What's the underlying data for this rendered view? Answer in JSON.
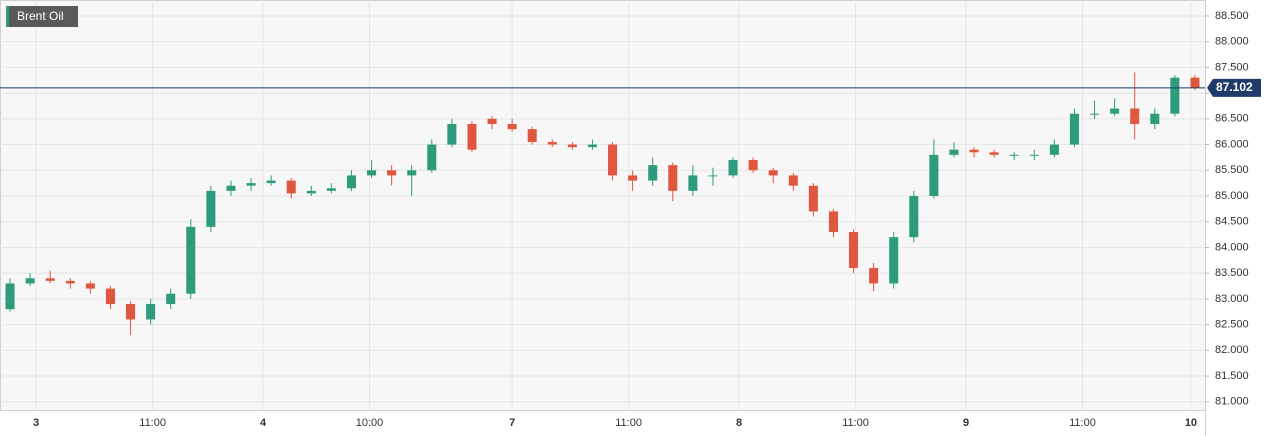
{
  "chart_data": {
    "type": "candlestick",
    "title": "Brent Oil",
    "open": [
      82.8,
      83.3,
      83.4,
      83.35,
      83.3,
      83.2,
      82.9,
      82.6,
      82.9,
      83.1,
      84.4,
      85.1,
      85.2,
      85.25,
      85.3,
      85.05,
      85.1,
      85.15,
      85.4,
      85.5,
      85.4,
      85.5,
      86.0,
      86.4,
      86.5,
      86.4,
      86.3,
      86.05,
      86.0,
      85.95,
      86.0,
      85.4,
      85.3,
      85.6,
      85.1,
      85.4,
      85.4,
      85.7,
      85.5,
      85.4,
      85.2,
      84.7,
      84.3,
      83.6,
      83.3,
      84.2,
      85.0,
      85.8,
      85.9,
      85.85,
      85.8,
      85.8,
      85.8,
      86.0,
      86.6,
      86.6,
      86.7,
      86.4,
      86.6,
      87.3
    ],
    "high": [
      83.4,
      83.5,
      83.55,
      83.4,
      83.35,
      83.25,
      82.95,
      83.0,
      83.2,
      84.55,
      85.2,
      85.3,
      85.35,
      85.4,
      85.35,
      85.2,
      85.25,
      85.5,
      85.7,
      85.6,
      85.6,
      86.1,
      86.5,
      86.45,
      86.55,
      86.5,
      86.35,
      86.1,
      86.05,
      86.1,
      86.05,
      85.5,
      85.75,
      85.65,
      85.6,
      85.55,
      85.75,
      85.75,
      85.55,
      85.45,
      85.25,
      84.75,
      84.35,
      83.7,
      84.3,
      85.1,
      86.1,
      86.05,
      85.95,
      85.9,
      85.85,
      85.9,
      86.1,
      86.7,
      86.85,
      86.9,
      87.4,
      86.7,
      87.35,
      87.35
    ],
    "low": [
      82.75,
      83.25,
      83.3,
      83.2,
      83.1,
      82.8,
      82.3,
      82.5,
      82.8,
      83.0,
      84.3,
      85.0,
      85.1,
      85.2,
      84.95,
      85.0,
      85.05,
      85.1,
      85.35,
      85.2,
      85.0,
      85.45,
      85.95,
      85.85,
      86.3,
      86.25,
      86.0,
      85.95,
      85.9,
      85.9,
      85.3,
      85.1,
      85.2,
      84.9,
      85.0,
      85.2,
      85.35,
      85.45,
      85.25,
      85.1,
      84.6,
      84.2,
      83.5,
      83.15,
      83.2,
      84.1,
      84.95,
      85.75,
      85.75,
      85.75,
      85.7,
      85.7,
      85.75,
      85.95,
      86.5,
      86.55,
      86.1,
      86.3,
      86.55,
      87.05
    ],
    "close": [
      83.3,
      83.4,
      83.35,
      83.3,
      83.2,
      82.9,
      82.6,
      82.9,
      83.1,
      84.4,
      85.1,
      85.2,
      85.25,
      85.3,
      85.05,
      85.1,
      85.15,
      85.4,
      85.5,
      85.4,
      85.5,
      86.0,
      86.4,
      85.9,
      86.4,
      86.3,
      86.05,
      86.0,
      85.95,
      86.0,
      85.4,
      85.3,
      85.6,
      85.1,
      85.4,
      85.4,
      85.7,
      85.5,
      85.4,
      85.2,
      84.7,
      84.3,
      83.6,
      83.3,
      84.2,
      85.0,
      85.8,
      85.9,
      85.85,
      85.8,
      85.8,
      85.8,
      86.0,
      86.6,
      86.6,
      86.7,
      86.4,
      86.6,
      87.3,
      87.1
    ],
    "up_color": "#2e9c7c",
    "down_color": "#e0573f",
    "last_price": 87.102,
    "xlim": [
      -0.5,
      59.5
    ],
    "xticks": [
      {
        "value": 1.3,
        "label": "3"
      },
      {
        "value": 7.1,
        "label": "11:00"
      },
      {
        "value": 12.6,
        "label": "4"
      },
      {
        "value": 17.9,
        "label": "10:00"
      },
      {
        "value": 25.0,
        "label": "7"
      },
      {
        "value": 30.8,
        "label": "11:00"
      },
      {
        "value": 36.3,
        "label": "8"
      },
      {
        "value": 42.1,
        "label": "11:00"
      },
      {
        "value": 47.6,
        "label": "9"
      },
      {
        "value": 53.4,
        "label": "11:00"
      },
      {
        "value": 58.8,
        "label": "10"
      }
    ],
    "ylim": [
      80.84,
      88.81
    ],
    "yticks": [
      {
        "value": 81.0,
        "label": "81.000"
      },
      {
        "value": 81.5,
        "label": "81.500"
      },
      {
        "value": 82.0,
        "label": "82.000"
      },
      {
        "value": 82.5,
        "label": "82.500"
      },
      {
        "value": 83.0,
        "label": "83.000"
      },
      {
        "value": 83.5,
        "label": "83.500"
      },
      {
        "value": 84.0,
        "label": "84.000"
      },
      {
        "value": 84.5,
        "label": "84.500"
      },
      {
        "value": 85.0,
        "label": "85.000"
      },
      {
        "value": 85.5,
        "label": "85.500"
      },
      {
        "value": 86.0,
        "label": "86.000"
      },
      {
        "value": 86.5,
        "label": "86.500"
      },
      {
        "value": 87.0,
        "label": "87.000"
      },
      {
        "value": 87.5,
        "label": "87.500"
      },
      {
        "value": 88.0,
        "label": "88.000"
      },
      {
        "value": 88.5,
        "label": "88.500"
      }
    ],
    "grid": true
  }
}
